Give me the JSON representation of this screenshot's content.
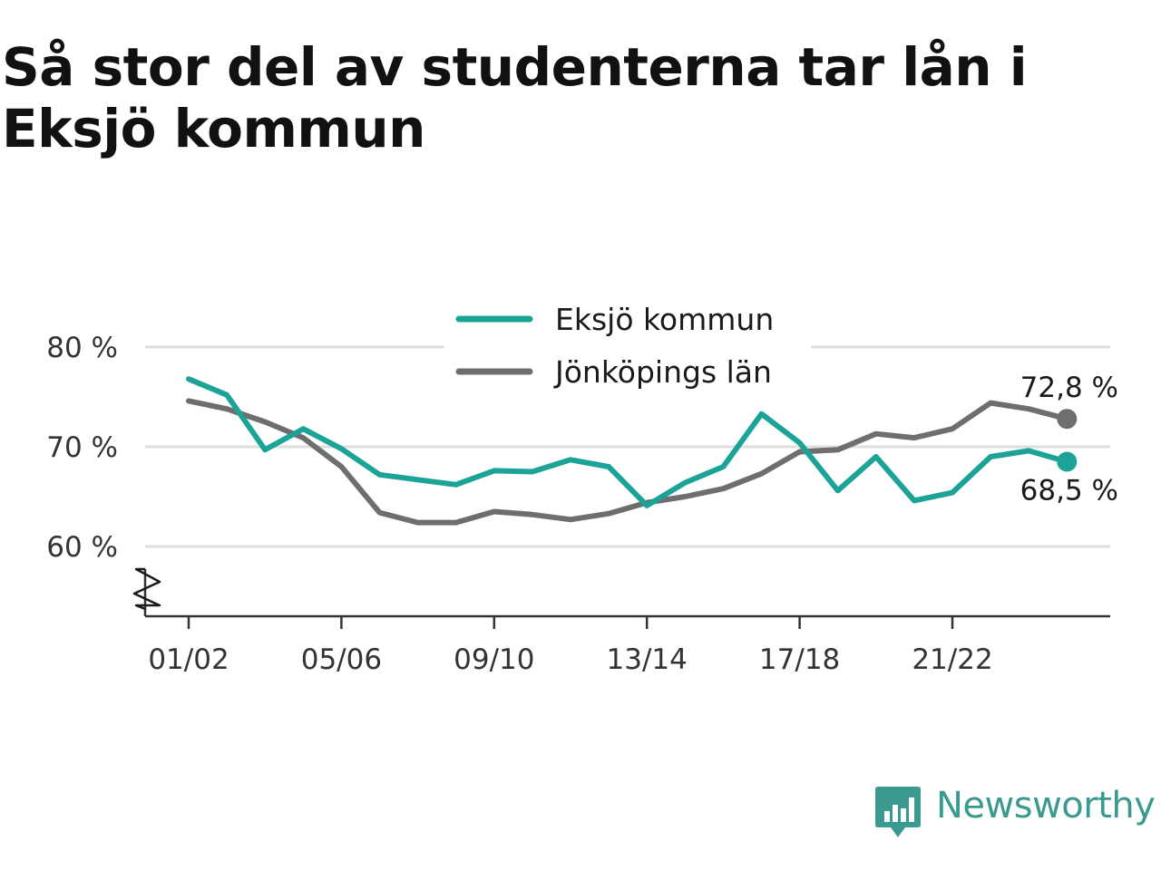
{
  "title": "Så stor del av studenterna tar lån i Eksjö kommun",
  "brand": "Newsworthy",
  "colors": {
    "series1": "#1aa396",
    "series2": "#6f6d70",
    "grid": "#dedede",
    "axis": "#333333",
    "brand": "#3a9a8f"
  },
  "chart_data": {
    "type": "line",
    "x": [
      "01/02",
      "02/03",
      "03/04",
      "04/05",
      "05/06",
      "06/07",
      "07/08",
      "08/09",
      "09/10",
      "10/11",
      "11/12",
      "12/13",
      "13/14",
      "14/15",
      "15/16",
      "16/17",
      "17/18",
      "18/19",
      "19/20",
      "20/21",
      "21/22",
      "22/23",
      "23/24",
      "24/25"
    ],
    "xticks": [
      "01/02",
      "05/06",
      "09/10",
      "13/14",
      "17/18",
      "21/22"
    ],
    "yticks": [
      60,
      70,
      80
    ],
    "ytick_labels": [
      "60 %",
      "70 %",
      "80 %"
    ],
    "ylim": [
      53,
      84
    ],
    "y_axis_break": true,
    "legend_position": "top-center",
    "grid": true,
    "series": [
      {
        "name": "Eksjö kommun",
        "color": "#1aa396",
        "values": [
          76.8,
          75.2,
          69.7,
          71.8,
          69.8,
          67.2,
          66.7,
          66.2,
          67.6,
          67.5,
          68.7,
          68.0,
          64.1,
          66.4,
          68.0,
          73.3,
          70.4,
          65.6,
          69.0,
          64.6,
          65.4,
          69.0,
          69.6,
          68.5
        ],
        "end_label": "68,5 %"
      },
      {
        "name": "Jönköpings län",
        "color": "#6f6d70",
        "values": [
          74.6,
          73.8,
          72.5,
          70.9,
          68.0,
          63.4,
          62.4,
          62.4,
          63.5,
          63.2,
          62.7,
          63.3,
          64.4,
          65.0,
          65.8,
          67.3,
          69.5,
          69.7,
          71.3,
          70.9,
          71.8,
          74.4,
          73.8,
          72.8
        ],
        "end_label": "72,8 %"
      }
    ]
  }
}
